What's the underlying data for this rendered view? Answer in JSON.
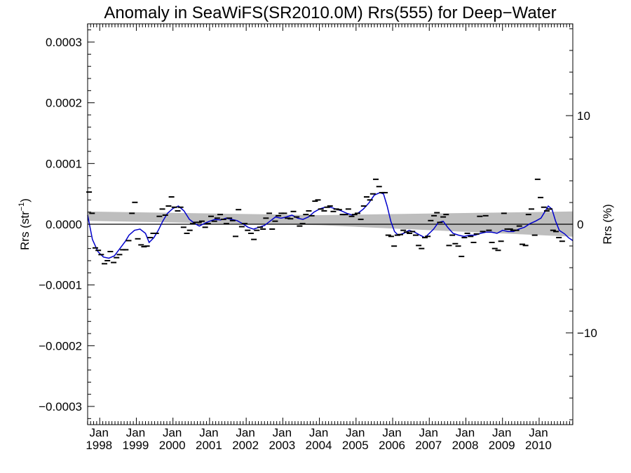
{
  "chart_data": {
    "type": "line",
    "title": "Anomaly in SeaWiFS(SR2010.0M) Rrs(555) for Deep−Water",
    "ylabel_left": {
      "main": "Rrs (str",
      "sup": "−1",
      "close": ")"
    },
    "ylabel_right": "Rrs (%)",
    "x_range": [
      1997.67,
      2010.92
    ],
    "y_range": [
      -0.00033,
      0.00033
    ],
    "y2_range": [
      -18.45,
      18.45
    ],
    "y_ticks": [
      {
        "value": 0.0003,
        "label": "0.0003"
      },
      {
        "value": 0.0002,
        "label": "0.0002"
      },
      {
        "value": 0.0001,
        "label": "0.0001"
      },
      {
        "value": 0.0,
        "label": "0.0000"
      },
      {
        "value": -0.0001,
        "label": "−0.0001"
      },
      {
        "value": -0.0002,
        "label": "−0.0002"
      },
      {
        "value": -0.0003,
        "label": "−0.0003"
      }
    ],
    "y2_ticks": [
      {
        "value": 10,
        "label": "10"
      },
      {
        "value": 0,
        "label": "0"
      },
      {
        "value": -10,
        "label": "−10"
      }
    ],
    "x_ticks": [
      {
        "value": 1998,
        "month": "Jan",
        "year": "1998"
      },
      {
        "value": 1999,
        "month": "Jan",
        "year": "1999"
      },
      {
        "value": 2000,
        "month": "Jan",
        "year": "2000"
      },
      {
        "value": 2001,
        "month": "Jan",
        "year": "2001"
      },
      {
        "value": 2002,
        "month": "Jan",
        "year": "2002"
      },
      {
        "value": 2003,
        "month": "Jan",
        "year": "2003"
      },
      {
        "value": 2004,
        "month": "Jan",
        "year": "2004"
      },
      {
        "value": 2005,
        "month": "Jan",
        "year": "2005"
      },
      {
        "value": 2006,
        "month": "Jan",
        "year": "2006"
      },
      {
        "value": 2007,
        "month": "Jan",
        "year": "2007"
      },
      {
        "value": 2008,
        "month": "Jan",
        "year": "2008"
      },
      {
        "value": 2009,
        "month": "Jan",
        "year": "2009"
      },
      {
        "value": 2010,
        "month": "Jan",
        "year": "2010"
      }
    ],
    "zero_line": 0.0,
    "band": {
      "color": "#bebebe",
      "upper": [
        [
          1997.67,
          2.1e-05
        ],
        [
          2004.0,
          1.5e-05
        ],
        [
          2010.92,
          2.1e-05
        ]
      ],
      "lower": [
        [
          1997.67,
          5.5e-06
        ],
        [
          2004.0,
          -1.5e-06
        ],
        [
          2010.92,
          -2.05e-05
        ]
      ]
    },
    "monthly_color": "#000000",
    "smoothed_color": "#0000cc",
    "monthly_points": [
      [
        1997.71,
        5.3e-05
      ],
      [
        1997.79,
        1.8e-05
      ],
      [
        1997.88,
        -3.9e-05
      ],
      [
        1997.96,
        -4.3e-05
      ],
      [
        1998.04,
        -5e-05
      ],
      [
        1998.13,
        -6.5e-05
      ],
      [
        1998.21,
        -6e-05
      ],
      [
        1998.29,
        -4.5e-05
      ],
      [
        1998.38,
        -6.3e-05
      ],
      [
        1998.46,
        -5.5e-05
      ],
      [
        1998.54,
        -5e-05
      ],
      [
        1998.63,
        -4.2e-05
      ],
      [
        1998.71,
        -4.2e-05
      ],
      [
        1998.79,
        -2.7e-05
      ],
      [
        1998.88,
        1.8e-05
      ],
      [
        1998.96,
        3.6e-05
      ],
      [
        1999.04,
        -2.4e-05
      ],
      [
        1999.13,
        -3.4e-05
      ],
      [
        1999.21,
        -3.7e-05
      ],
      [
        1999.29,
        -3.6e-05
      ],
      [
        1999.38,
        -2.2e-05
      ],
      [
        1999.46,
        -1.5e-05
      ],
      [
        1999.54,
        -1.5e-05
      ],
      [
        1999.63,
        1.3e-05
      ],
      [
        1999.71,
        2.5e-05
      ],
      [
        1999.79,
        1.5e-05
      ],
      [
        1999.88,
        3e-05
      ],
      [
        1999.96,
        4.5e-05
      ],
      [
        2000.04,
        2.8e-05
      ],
      [
        2000.13,
        2.2e-05
      ],
      [
        2000.21,
        2.8e-05
      ],
      [
        2000.29,
        -5e-06
      ],
      [
        2000.38,
        -1.5e-05
      ],
      [
        2000.46,
        -1e-05
      ],
      [
        2000.54,
        1e-06
      ],
      [
        2000.63,
        3e-06
      ],
      [
        2000.71,
        3e-06
      ],
      [
        2000.79,
        5e-06
      ],
      [
        2000.88,
        -5e-06
      ],
      [
        2000.96,
        1e-06
      ],
      [
        2001.04,
        1.3e-05
      ],
      [
        2001.13,
        5e-06
      ],
      [
        2001.21,
        1e-05
      ],
      [
        2001.29,
        1.6e-05
      ],
      [
        2001.38,
        8e-06
      ],
      [
        2001.46,
        1e-06
      ],
      [
        2001.54,
        1e-05
      ],
      [
        2001.63,
        6e-06
      ],
      [
        2001.71,
        -2e-05
      ],
      [
        2001.79,
        2.4e-05
      ],
      [
        2001.88,
        -4e-06
      ],
      [
        2001.96,
        1e-06
      ],
      [
        2002.04,
        -1e-05
      ],
      [
        2002.13,
        -1.5e-05
      ],
      [
        2002.21,
        -2.5e-05
      ],
      [
        2002.29,
        -1e-05
      ],
      [
        2002.38,
        -5e-06
      ],
      [
        2002.46,
        -8e-06
      ],
      [
        2002.54,
        1e-05
      ],
      [
        2002.63,
        1.8e-05
      ],
      [
        2002.71,
        -8e-06
      ],
      [
        2002.79,
        5e-06
      ],
      [
        2002.88,
        1.4e-05
      ],
      [
        2002.96,
        1.8e-05
      ],
      [
        2003.04,
        1.8e-05
      ],
      [
        2003.13,
        1e-05
      ],
      [
        2003.21,
        9e-06
      ],
      [
        2003.29,
        2.1e-05
      ],
      [
        2003.38,
        1.2e-05
      ],
      [
        2003.46,
        -3e-06
      ],
      [
        2003.54,
        1e-06
      ],
      [
        2003.63,
        1.6e-05
      ],
      [
        2003.71,
        2.2e-05
      ],
      [
        2003.79,
        1.4e-05
      ],
      [
        2003.88,
        3.8e-05
      ],
      [
        2003.96,
        4e-05
      ],
      [
        2004.04,
        2.5e-05
      ],
      [
        2004.13,
        2.2e-05
      ],
      [
        2004.21,
        2.8e-05
      ],
      [
        2004.29,
        3e-05
      ],
      [
        2004.38,
        2.1e-05
      ],
      [
        2004.46,
        2.5e-05
      ],
      [
        2004.54,
        2.4e-05
      ],
      [
        2004.63,
        1.6e-05
      ],
      [
        2004.71,
        1.6e-05
      ],
      [
        2004.79,
        2.5e-05
      ],
      [
        2004.88,
        1.3e-05
      ],
      [
        2004.96,
        1.6e-05
      ],
      [
        2005.04,
        1.8e-05
      ],
      [
        2005.13,
        8e-06
      ],
      [
        2005.21,
        3e-05
      ],
      [
        2005.29,
        4.5e-05
      ],
      [
        2005.38,
        4e-05
      ],
      [
        2005.46,
        5e-05
      ],
      [
        2005.54,
        7.4e-05
      ],
      [
        2005.63,
        6.2e-05
      ],
      [
        2005.71,
        5.2e-05
      ],
      [
        2005.79,
        5.2e-05
      ],
      [
        2005.88,
        -1.8e-05
      ],
      [
        2005.96,
        -2e-05
      ],
      [
        2006.04,
        -3.6e-05
      ],
      [
        2006.13,
        -1.8e-05
      ],
      [
        2006.21,
        -1.7e-05
      ],
      [
        2006.29,
        -1e-05
      ],
      [
        2006.38,
        -1.3e-05
      ],
      [
        2006.46,
        -1.5e-05
      ],
      [
        2006.54,
        -1.2e-05
      ],
      [
        2006.63,
        -1.8e-05
      ],
      [
        2006.71,
        -3.5e-05
      ],
      [
        2006.79,
        -4e-05
      ],
      [
        2006.88,
        -2.2e-05
      ],
      [
        2006.96,
        -2e-05
      ],
      [
        2007.04,
        6e-06
      ],
      [
        2007.13,
        1.4e-05
      ],
      [
        2007.21,
        1.9e-05
      ],
      [
        2007.29,
        3e-06
      ],
      [
        2007.38,
        1.2e-05
      ],
      [
        2007.46,
        1.6e-05
      ],
      [
        2007.54,
        -3.5e-05
      ],
      [
        2007.63,
        -1.8e-05
      ],
      [
        2007.71,
        -3.2e-05
      ],
      [
        2007.79,
        -3.6e-05
      ],
      [
        2007.88,
        -5.3e-05
      ],
      [
        2007.96,
        -2.2e-05
      ],
      [
        2008.04,
        -1.5e-05
      ],
      [
        2008.13,
        -2e-05
      ],
      [
        2008.21,
        -3e-05
      ],
      [
        2008.29,
        -1.6e-05
      ],
      [
        2008.38,
        1.3e-05
      ],
      [
        2008.46,
        -1.2e-05
      ],
      [
        2008.54,
        1.4e-05
      ],
      [
        2008.63,
        -1e-05
      ],
      [
        2008.71,
        -3e-05
      ],
      [
        2008.79,
        -4e-05
      ],
      [
        2008.88,
        -4.3e-05
      ],
      [
        2008.96,
        -2.8e-05
      ],
      [
        2009.04,
        1.8e-05
      ],
      [
        2009.13,
        -8e-06
      ],
      [
        2009.21,
        -8e-06
      ],
      [
        2009.29,
        -1e-05
      ],
      [
        2009.38,
        -1e-05
      ],
      [
        2009.46,
        -3e-06
      ],
      [
        2009.54,
        -3.3e-05
      ],
      [
        2009.63,
        -3.5e-05
      ],
      [
        2009.71,
        1.6e-05
      ],
      [
        2009.79,
        2.5e-05
      ],
      [
        2009.88,
        -1.8e-05
      ],
      [
        2009.96,
        7.4e-05
      ],
      [
        2010.04,
        4.4e-05
      ],
      [
        2010.13,
        2.8e-05
      ],
      [
        2010.21,
        2.2e-05
      ],
      [
        2010.29,
        2.5e-05
      ],
      [
        2010.38,
        -1e-05
      ],
      [
        2010.46,
        -1.2e-05
      ],
      [
        2010.54,
        -2.2e-05
      ],
      [
        2010.63,
        -2.8e-05
      ]
    ],
    "smoothed_line": [
      [
        1997.67,
        1.5e-05
      ],
      [
        1997.8,
        -2.5e-05
      ],
      [
        1997.95,
        -4.5e-05
      ],
      [
        1998.1,
        -5.4e-05
      ],
      [
        1998.25,
        -5.6e-05
      ],
      [
        1998.4,
        -5.2e-05
      ],
      [
        1998.55,
        -4e-05
      ],
      [
        1998.7,
        -2.8e-05
      ],
      [
        1998.8,
        -1.8e-05
      ],
      [
        1998.95,
        -1e-05
      ],
      [
        1999.1,
        -8e-06
      ],
      [
        1999.25,
        -1.5e-05
      ],
      [
        1999.35,
        -3e-05
      ],
      [
        1999.48,
        -2.2e-05
      ],
      [
        1999.6,
        -1e-05
      ],
      [
        1999.72,
        5e-06
      ],
      [
        1999.85,
        1.8e-05
      ],
      [
        2000.0,
        2.6e-05
      ],
      [
        2000.15,
        3e-05
      ],
      [
        2000.3,
        2.2e-05
      ],
      [
        2000.45,
        8e-06
      ],
      [
        2000.6,
        1e-06
      ],
      [
        2000.72,
        -3e-06
      ],
      [
        2000.85,
        1e-06
      ],
      [
        2001.0,
        5e-06
      ],
      [
        2001.15,
        8e-06
      ],
      [
        2001.3,
        7e-06
      ],
      [
        2001.45,
        1e-05
      ],
      [
        2001.6,
        8e-06
      ],
      [
        2001.75,
        6e-06
      ],
      [
        2001.9,
        1e-06
      ],
      [
        2002.05,
        -5e-06
      ],
      [
        2002.2,
        -8e-06
      ],
      [
        2002.35,
        -5e-06
      ],
      [
        2002.5,
        -2e-06
      ],
      [
        2002.65,
        5e-06
      ],
      [
        2002.8,
        1.2e-05
      ],
      [
        2002.95,
        1e-05
      ],
      [
        2003.1,
        1.2e-05
      ],
      [
        2003.25,
        1.5e-05
      ],
      [
        2003.4,
        1e-05
      ],
      [
        2003.55,
        8e-06
      ],
      [
        2003.7,
        1.2e-05
      ],
      [
        2003.85,
        2e-05
      ],
      [
        2004.0,
        2.5e-05
      ],
      [
        2004.15,
        2.8e-05
      ],
      [
        2004.3,
        2.8e-05
      ],
      [
        2004.45,
        2.5e-05
      ],
      [
        2004.6,
        2.2e-05
      ],
      [
        2004.75,
        1.8e-05
      ],
      [
        2004.9,
        1.5e-05
      ],
      [
        2005.05,
        1.8e-05
      ],
      [
        2005.2,
        2.5e-05
      ],
      [
        2005.35,
        3.5e-05
      ],
      [
        2005.5,
        4.8e-05
      ],
      [
        2005.65,
        5.2e-05
      ],
      [
        2005.75,
        5e-05
      ],
      [
        2005.85,
        3e-05
      ],
      [
        2005.95,
        5e-06
      ],
      [
        2006.05,
        -1.2e-05
      ],
      [
        2006.15,
        -1.8e-05
      ],
      [
        2006.3,
        -1.5e-05
      ],
      [
        2006.45,
        -1e-05
      ],
      [
        2006.6,
        -1.3e-05
      ],
      [
        2006.75,
        -1.8e-05
      ],
      [
        2006.88,
        -2.2e-05
      ],
      [
        2007.0,
        -1.5e-05
      ],
      [
        2007.12,
        -8e-06
      ],
      [
        2007.25,
        3e-06
      ],
      [
        2007.38,
        5e-06
      ],
      [
        2007.5,
        -5e-06
      ],
      [
        2007.65,
        -1.5e-05
      ],
      [
        2007.8,
        -1.8e-05
      ],
      [
        2007.95,
        -2e-05
      ],
      [
        2008.1,
        -1.8e-05
      ],
      [
        2008.25,
        -1.8e-05
      ],
      [
        2008.4,
        -1.5e-05
      ],
      [
        2008.55,
        -1.3e-05
      ],
      [
        2008.7,
        -1.3e-05
      ],
      [
        2008.85,
        -1.5e-05
      ],
      [
        2009.0,
        -1e-05
      ],
      [
        2009.15,
        -1.2e-05
      ],
      [
        2009.3,
        -1.2e-05
      ],
      [
        2009.45,
        -8e-06
      ],
      [
        2009.6,
        -5e-06
      ],
      [
        2009.75,
        1e-06
      ],
      [
        2009.9,
        5e-06
      ],
      [
        2010.05,
        1e-05
      ],
      [
        2010.15,
        2e-05
      ],
      [
        2010.25,
        3e-05
      ],
      [
        2010.35,
        2.5e-05
      ],
      [
        2010.45,
        5e-06
      ],
      [
        2010.55,
        -1e-05
      ],
      [
        2010.7,
        -1.6e-05
      ],
      [
        2010.8,
        -2.2e-05
      ],
      [
        2010.92,
        -2.7e-05
      ]
    ]
  }
}
